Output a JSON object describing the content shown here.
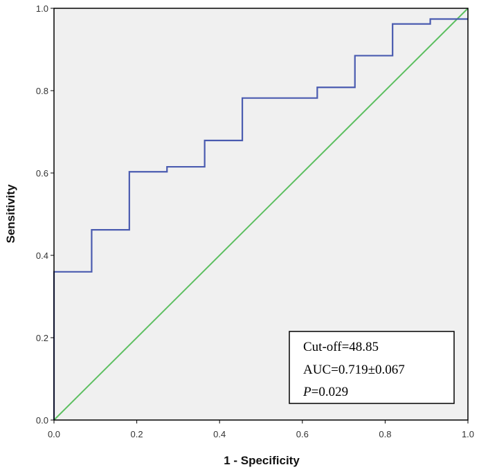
{
  "chart_data": {
    "type": "line",
    "title": "",
    "xlabel": "1 - Specificity",
    "ylabel": "Sensitivity",
    "xlim": [
      0,
      1
    ],
    "ylim": [
      0,
      1
    ],
    "x_ticks": [
      "0.0",
      "0.2",
      "0.4",
      "0.6",
      "0.8",
      "1.0"
    ],
    "y_ticks": [
      "0.0",
      "0.2",
      "0.4",
      "0.6",
      "0.8",
      "1.0"
    ],
    "grid": false,
    "colors": {
      "plot_background": "#f0f0f0",
      "roc_curve": "#4a5bb0",
      "reference_line": "#5cbf60"
    },
    "series": [
      {
        "name": "ROC curve",
        "step": true,
        "x": [
          0.0,
          0.0,
          0.091,
          0.091,
          0.182,
          0.182,
          0.273,
          0.273,
          0.364,
          0.364,
          0.455,
          0.455,
          0.636,
          0.636,
          0.727,
          0.727,
          0.818,
          0.818,
          0.909,
          0.909,
          1.0
        ],
        "y": [
          0.0,
          0.36,
          0.36,
          0.462,
          0.462,
          0.603,
          0.603,
          0.615,
          0.615,
          0.679,
          0.679,
          0.782,
          0.782,
          0.808,
          0.808,
          0.885,
          0.885,
          0.962,
          0.962,
          0.974,
          0.974
        ]
      },
      {
        "name": "Reference line",
        "x": [
          0,
          1
        ],
        "y": [
          0,
          1
        ]
      }
    ],
    "annotation": {
      "cutoff": "Cut-off=48.85",
      "auc": "AUC=0.719±0.067",
      "p_label": "P",
      "p_value": "=0.029",
      "placement": "bottom-right"
    }
  }
}
